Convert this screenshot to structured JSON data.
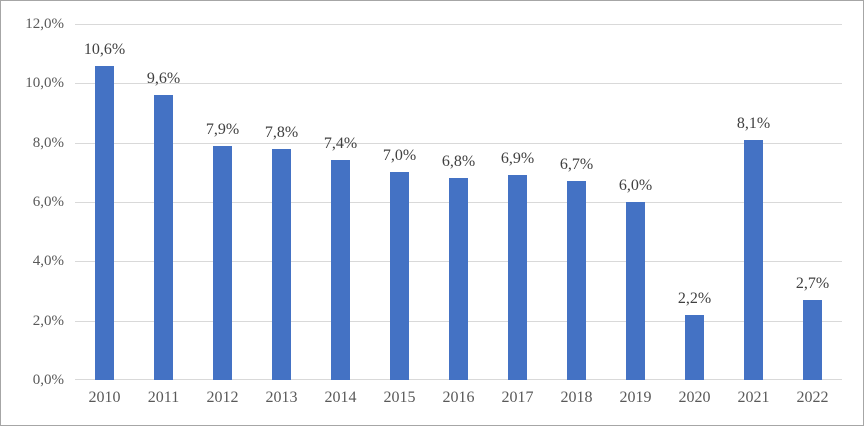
{
  "chart_data": {
    "type": "bar",
    "title": "",
    "xlabel": "",
    "ylabel": "",
    "categories": [
      "2010",
      "2011",
      "2012",
      "2013",
      "2014",
      "2015",
      "2016",
      "2017",
      "2018",
      "2019",
      "2020",
      "2021",
      "2022"
    ],
    "values": [
      10.6,
      9.6,
      7.9,
      7.8,
      7.4,
      7.0,
      6.8,
      6.9,
      6.7,
      6.0,
      2.2,
      8.1,
      2.7
    ],
    "data_labels": [
      "10,6%",
      "9,6%",
      "7,9%",
      "7,8%",
      "7,4%",
      "7,0%",
      "6,8%",
      "6,9%",
      "6,7%",
      "6,0%",
      "2,2%",
      "8,1%",
      "2,7%"
    ],
    "y_ticks": [
      {
        "value": 0,
        "label": "0,0%"
      },
      {
        "value": 2,
        "label": "2,0%"
      },
      {
        "value": 4,
        "label": "4,0%"
      },
      {
        "value": 6,
        "label": "6,0%"
      },
      {
        "value": 8,
        "label": "8,0%"
      },
      {
        "value": 10,
        "label": "10,0%"
      },
      {
        "value": 12,
        "label": "12,0%"
      }
    ],
    "ylim": [
      0,
      12
    ],
    "grid": "horizontal",
    "legend": "none",
    "colors": {
      "bar": "#4472C4",
      "gridline": "#D9D9D9",
      "axis_label": "#595959",
      "data_label": "#404040",
      "frame_border": "#A6A6A6",
      "background": "#FFFFFF"
    }
  }
}
